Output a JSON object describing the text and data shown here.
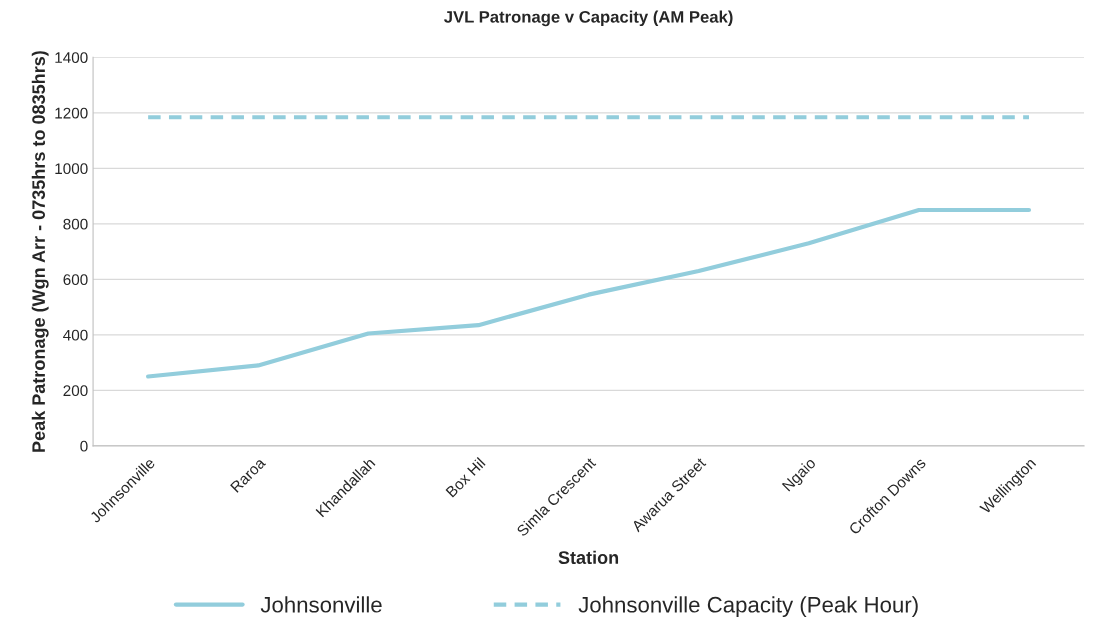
{
  "chart_data": {
    "type": "line",
    "title": "JVL Patronage v Capacity (AM Peak)",
    "xlabel": "Station",
    "ylabel": "Peak Patronage (Wgn Arr - 0735hrs to 0835hrs)",
    "categories": [
      "Johnsonville",
      "Raroa",
      "Khandallah",
      "Box Hil",
      "Simla Crescent",
      "Awarua Street",
      "Ngaio",
      "Crofton Downs",
      "Wellington"
    ],
    "series": [
      {
        "name": "Johnsonville",
        "color": "#92cddc",
        "line_style": "solid",
        "values": [
          250,
          290,
          405,
          435,
          545,
          630,
          730,
          850,
          850
        ]
      },
      {
        "name": "Johnsonville Capacity (Peak Hour)",
        "color": "#92cddc",
        "line_style": "dashed",
        "values": [
          1184,
          1184,
          1184,
          1184,
          1184,
          1184,
          1184,
          1184,
          1184
        ]
      }
    ],
    "ylim": [
      0,
      1400
    ],
    "yticks": [
      0,
      200,
      400,
      600,
      800,
      1000,
      1200,
      1400
    ],
    "grid": "y",
    "legend": "bottom",
    "marker": "none"
  }
}
